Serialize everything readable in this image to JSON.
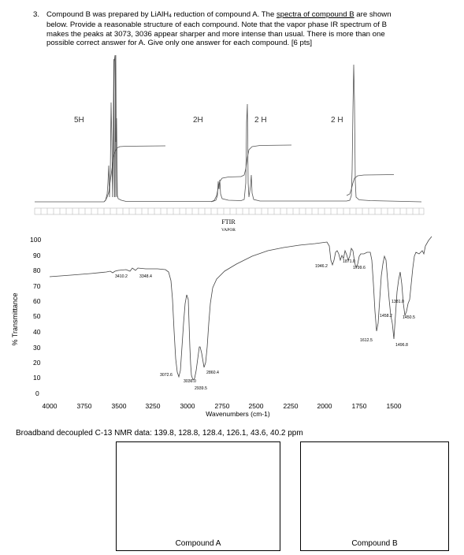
{
  "question": {
    "number": "3.",
    "line1_pre": "Compound B was prepared by LiAlH",
    "line1_sub": "4",
    "line1_mid": " reduction of compound A.  The ",
    "line1_link": "spectra of compound B",
    "line1_post": " are shown",
    "line2": "below.  Provide a reasonable structure of each compound.  Note that the vapor phase IR spectrum of B",
    "line3": "makes the peaks at 3073, 3036 appear sharper and more intense than usual.  There is more than one",
    "line4": "possible correct answer for A.  Give only one answer for each compound.  [6 pts]"
  },
  "nmr": {
    "integrations": [
      "5H",
      "2H",
      "2 H",
      "2 H"
    ]
  },
  "ir": {
    "title": "FTIR",
    "subtitle": "VAPOR",
    "ylabel": "% Transmittance",
    "xlabel": "Wavenumbers (cm-1)",
    "y_ticks": [
      "100",
      "90",
      "80",
      "70",
      "60",
      "50",
      "40",
      "30",
      "20",
      "10",
      "0"
    ],
    "x_ticks": [
      "4000",
      "3750",
      "3500",
      "3250",
      "3000",
      "2750",
      "2500",
      "2250",
      "2000",
      "1750",
      "1500"
    ],
    "peaks": [
      "3410.2",
      "3348.4",
      "3072.6",
      "3036.0",
      "2939.5",
      "2860.4",
      "1946.2",
      "1871.0",
      "1799.6",
      "1612.5",
      "1458.2",
      "1450.5",
      "1381.0",
      "1496.8"
    ]
  },
  "c13": {
    "text": "Broadband decoupled C-13 NMR data:  139.8, 128.8, 128.4, 126.1, 43.6, 40.2 ppm"
  },
  "answers": {
    "compound_a": "Compound A",
    "compound_b": "Compound B"
  }
}
